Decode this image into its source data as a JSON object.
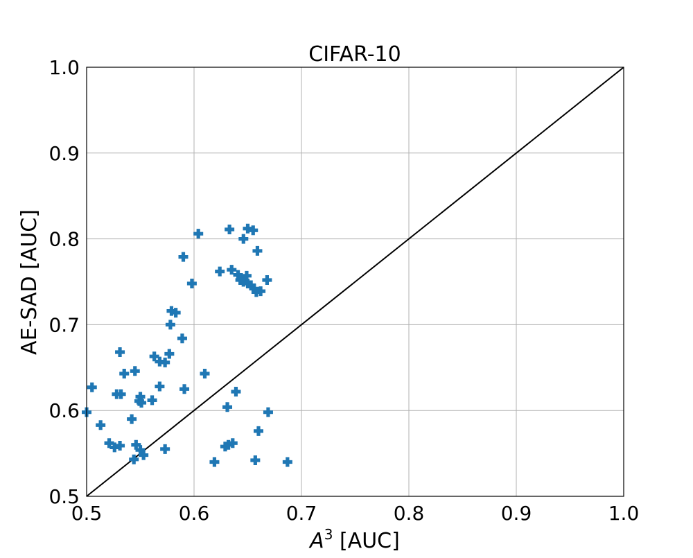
{
  "chart_data": {
    "type": "scatter",
    "title": "CIFAR-10",
    "xlabel_base": "A",
    "xlabel_sup": "3",
    "xlabel_rest": " [AUC]",
    "ylabel": "AE-SAD [AUC]",
    "xlim": [
      0.5,
      1.0
    ],
    "ylim": [
      0.5,
      1.0
    ],
    "x_ticks": [
      "0.5",
      "0.6",
      "0.7",
      "0.8",
      "0.9",
      "1.0"
    ],
    "y_ticks": [
      "0.5",
      "0.6",
      "0.7",
      "0.8",
      "0.9",
      "1.0"
    ],
    "grid": true,
    "reference_line": "y = x",
    "marker": "plus",
    "color": "#1f77b4",
    "series": [
      {
        "points": [
          [
            0.5,
            0.598
          ],
          [
            0.505,
            0.627
          ],
          [
            0.513,
            0.583
          ],
          [
            0.521,
            0.562
          ],
          [
            0.526,
            0.557
          ],
          [
            0.528,
            0.619
          ],
          [
            0.531,
            0.668
          ],
          [
            0.532,
            0.619
          ],
          [
            0.531,
            0.559
          ],
          [
            0.535,
            0.643
          ],
          [
            0.542,
            0.59
          ],
          [
            0.544,
            0.543
          ],
          [
            0.545,
            0.646
          ],
          [
            0.546,
            0.56
          ],
          [
            0.549,
            0.611
          ],
          [
            0.55,
            0.616
          ],
          [
            0.551,
            0.609
          ],
          [
            0.55,
            0.554
          ],
          [
            0.553,
            0.548
          ],
          [
            0.561,
            0.612
          ],
          [
            0.563,
            0.663
          ],
          [
            0.568,
            0.628
          ],
          [
            0.568,
            0.657
          ],
          [
            0.573,
            0.656
          ],
          [
            0.573,
            0.555
          ],
          [
            0.577,
            0.666
          ],
          [
            0.578,
            0.7
          ],
          [
            0.579,
            0.716
          ],
          [
            0.583,
            0.714
          ],
          [
            0.589,
            0.684
          ],
          [
            0.59,
            0.779
          ],
          [
            0.591,
            0.625
          ],
          [
            0.598,
            0.748
          ],
          [
            0.604,
            0.806
          ],
          [
            0.61,
            0.643
          ],
          [
            0.619,
            0.54
          ],
          [
            0.624,
            0.762
          ],
          [
            0.629,
            0.558
          ],
          [
            0.631,
            0.604
          ],
          [
            0.633,
            0.811
          ],
          [
            0.632,
            0.56
          ],
          [
            0.635,
            0.764
          ],
          [
            0.636,
            0.562
          ],
          [
            0.639,
            0.622
          ],
          [
            0.641,
            0.758
          ],
          [
            0.643,
            0.752
          ],
          [
            0.646,
            0.8
          ],
          [
            0.646,
            0.75
          ],
          [
            0.649,
            0.757
          ],
          [
            0.65,
            0.748
          ],
          [
            0.65,
            0.812
          ],
          [
            0.653,
            0.746
          ],
          [
            0.655,
            0.81
          ],
          [
            0.656,
            0.742
          ],
          [
            0.657,
            0.542
          ],
          [
            0.658,
            0.738
          ],
          [
            0.659,
            0.786
          ],
          [
            0.66,
            0.576
          ],
          [
            0.662,
            0.739
          ],
          [
            0.668,
            0.752
          ],
          [
            0.669,
            0.598
          ],
          [
            0.687,
            0.54
          ]
        ]
      }
    ]
  }
}
